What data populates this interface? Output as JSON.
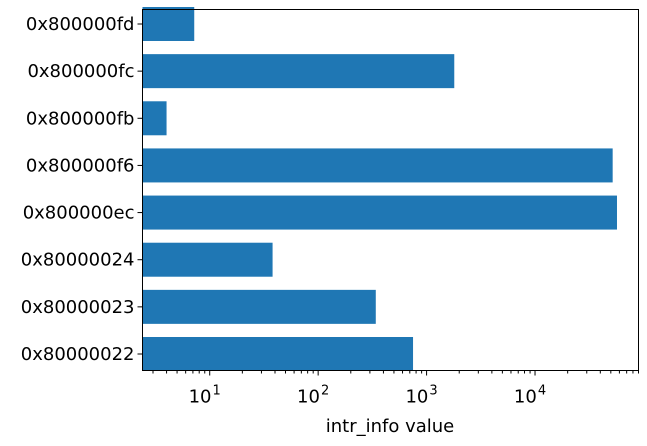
{
  "chart_data": {
    "type": "bar",
    "orientation": "horizontal",
    "xscale": "log",
    "xlabel": "intr_info value",
    "ylabel": "",
    "title": "",
    "xlim": [
      2.4,
      90000
    ],
    "categories": [
      "0x80000022",
      "0x80000023",
      "0x80000024",
      "0x800000ec",
      "0x800000f6",
      "0x800000fb",
      "0x800000fc",
      "0x800000fd"
    ],
    "values": [
      750,
      340,
      38,
      57000,
      52000,
      4,
      1800,
      7.2
    ],
    "major_ticks": [
      {
        "value": 10,
        "base": "10",
        "exp": "1"
      },
      {
        "value": 100,
        "base": "10",
        "exp": "2"
      },
      {
        "value": 1000,
        "base": "10",
        "exp": "3"
      },
      {
        "value": 10000,
        "base": "10",
        "exp": "4"
      }
    ],
    "grid": false,
    "legend": "none",
    "colors": {
      "bar": "#1f77b4"
    }
  }
}
